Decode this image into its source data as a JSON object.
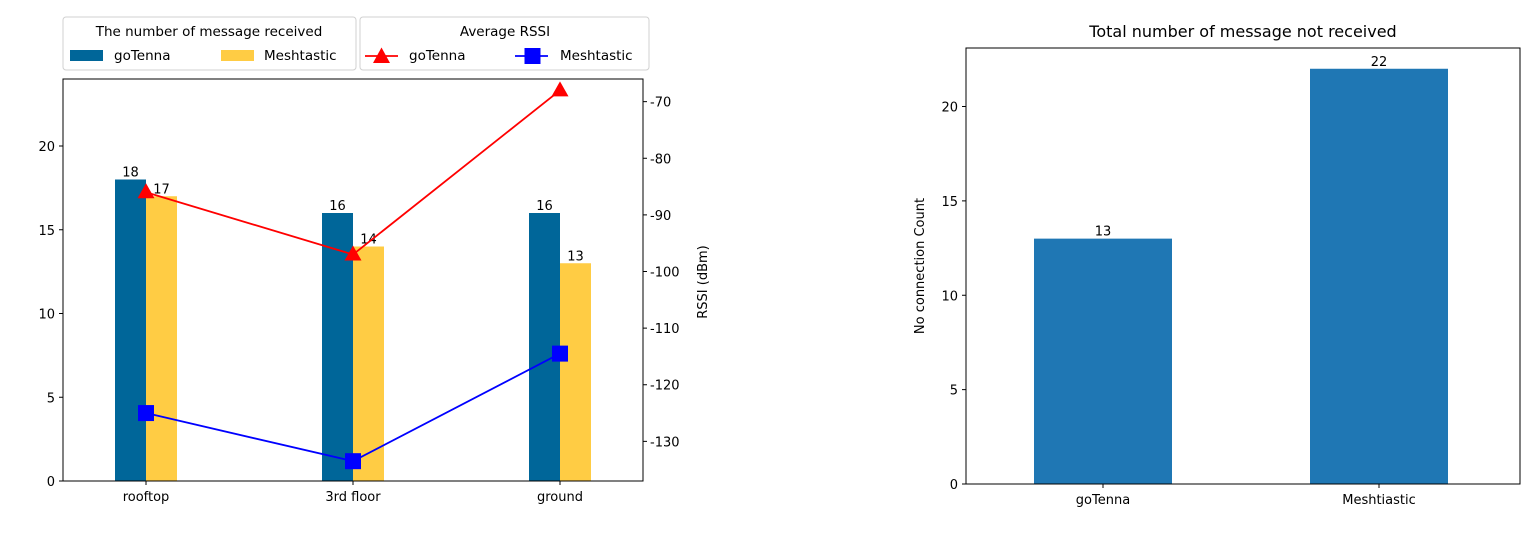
{
  "chart_data": [
    {
      "type": "bar",
      "categories": [
        "rooftop",
        "3rd floor",
        "ground"
      ],
      "left_ylim": [
        0,
        24
      ],
      "left_yticks": [
        0,
        5,
        10,
        15,
        20
      ],
      "series": [
        {
          "name": "goTenna",
          "values": [
            18,
            16,
            16
          ],
          "color": "#006699"
        },
        {
          "name": "Meshtastic",
          "values": [
            17,
            14,
            13
          ],
          "color": "#ffcc44"
        }
      ],
      "bar_legend_title": "The number of message received",
      "secondary_axis": {
        "type": "line",
        "ylabel": "RSSI (dBm)",
        "ylim": [
          -137,
          -66
        ],
        "yticks": [
          -70,
          -80,
          -90,
          -100,
          -110,
          -120,
          -130
        ],
        "series": [
          {
            "name": "goTenna",
            "values": [
              -86,
              -97,
              -68
            ],
            "color": "#ff0000",
            "marker": "triangle"
          },
          {
            "name": "Meshtastic",
            "values": [
              -125,
              -133.5,
              -114.5
            ],
            "color": "#0000ff",
            "marker": "square"
          }
        ],
        "legend_title": "Average RSSI"
      },
      "grid": false,
      "legend_placement": "above plot"
    },
    {
      "type": "bar",
      "title": "Total number of message not received",
      "categories": [
        "goTenna",
        "Meshtiastic"
      ],
      "values": [
        13,
        22
      ],
      "color": "#1f77b4",
      "ylabel": "No connection Count",
      "ylim": [
        0,
        23.1
      ],
      "yticks": [
        0,
        5,
        10,
        15,
        20
      ],
      "grid": false
    }
  ]
}
